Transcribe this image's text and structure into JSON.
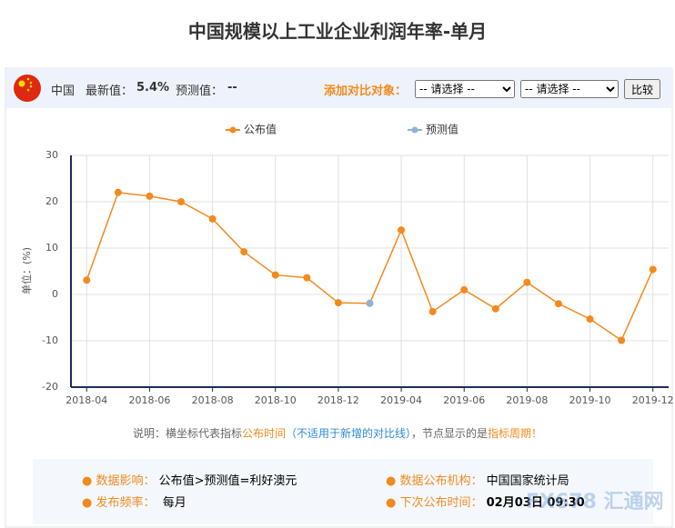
{
  "header": {
    "country": "中国",
    "latest_label": "最新值：",
    "latest_value": "5.4%",
    "forecast_label": "预测值：",
    "forecast_value": "--",
    "compare_label": "添加对比对象：",
    "select_1": "-- 请选择 --",
    "select_2": "-- 请选择 --",
    "compare_button": "比较"
  },
  "chart_data": {
    "type": "line",
    "title": "中国规模以上工业企业利润年率-单月",
    "ylabel": "单位：(%)",
    "categories": [
      "2018-04",
      null,
      "2018-06",
      null,
      "2018-08",
      null,
      "2018-10",
      null,
      "2018-12",
      null,
      "2019-04",
      null,
      "2019-06",
      null,
      "2019-08",
      null,
      "2019-10",
      null,
      "2019-12"
    ],
    "series": [
      {
        "name": "公布值",
        "color": "#f28a1e",
        "values": [
          3.1,
          22.0,
          21.2,
          20.0,
          16.3,
          9.2,
          4.2,
          3.6,
          -1.8,
          -1.9,
          13.9,
          -3.7,
          1.0,
          -3.1,
          2.6,
          -2.0,
          -5.3,
          -9.9,
          5.4
        ]
      },
      {
        "name": "预测值",
        "color": "#8fb4d8",
        "values": [
          null,
          null,
          null,
          null,
          null,
          null,
          null,
          null,
          null,
          -1.9,
          null,
          null,
          null,
          null,
          null,
          null,
          null,
          null,
          null
        ]
      }
    ],
    "ylim": [
      -20,
      30
    ],
    "yticks": [
      -20,
      -10,
      0,
      10,
      20,
      30
    ],
    "grid": true
  },
  "note": {
    "part1": "说明：横坐标代表指标",
    "part2": "公布时间",
    "part3": "（不适用于新增的对比线）",
    "part4": "，节点显示的是",
    "part5": "指标周期！"
  },
  "info": {
    "impact_label": "数据影响：",
    "impact_value": "公布值>预测值=利好澳元",
    "agency_label": "数据公布机构：",
    "agency_value": "中国国家统计局",
    "frequency_label": "发布频率：",
    "frequency_value": "每月",
    "next_label": "下次公布时间：",
    "next_value": "02月03日 09:30"
  },
  "watermark": "FX678 汇通网"
}
